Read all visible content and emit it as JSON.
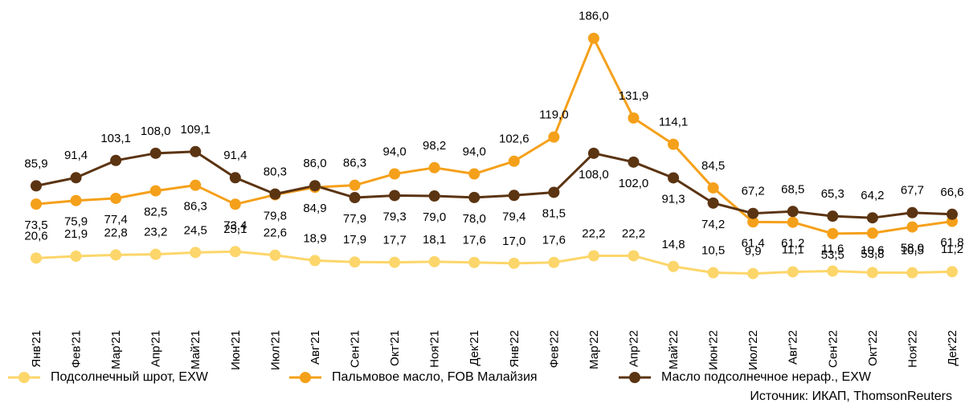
{
  "chart_data": {
    "type": "line",
    "categories": [
      "Янв'21",
      "Фев'21",
      "Мар'21",
      "Апр'21",
      "Май'21",
      "Июн'21",
      "Июл'21",
      "Авг'21",
      "Сен'21",
      "Окт'21",
      "Ноя'21",
      "Дек'21",
      "Янв'22",
      "Фев'22",
      "Мар'22",
      "Апр'22",
      "Май'22",
      "Июн'22",
      "Июл'22",
      "Авг'22",
      "Сен'22",
      "Окт'22",
      "Ноя'22",
      "Дек'22"
    ],
    "ylim": [
      0,
      200
    ],
    "y2lim": [
      -17,
      187
    ],
    "series": [
      {
        "name": "Подсолнечный шрот, EXW",
        "color": "#fcd66a",
        "axis": "y2",
        "values": [
          20.6,
          21.9,
          22.8,
          23.2,
          24.5,
          25.1,
          22.6,
          18.9,
          17.9,
          17.7,
          18.1,
          17.6,
          17.0,
          17.6,
          22.2,
          22.2,
          14.8,
          10.5,
          9.9,
          11.1,
          11.6,
          10.6,
          10.5,
          11.2
        ],
        "value_labels": [
          "20,6",
          "21,9",
          "22,8",
          "23,2",
          "24,5",
          "25,1",
          "22,6",
          "18,9",
          "17,9",
          "17,7",
          "18,1",
          "17,6",
          "17,0",
          "17,6",
          "22,2",
          "22,2",
          "14,8",
          "10,5",
          "9,9",
          "11,1",
          "11,6",
          "10,6",
          "10,5",
          "11,2"
        ]
      },
      {
        "name": "Пальмовое масло, FOB Малайзия",
        "color": "#f5a01a",
        "values": [
          73.5,
          75.9,
          77.4,
          82.5,
          86.3,
          73.4,
          79.8,
          84.9,
          86.3,
          94.0,
          98.2,
          94.0,
          102.6,
          119.0,
          186.0,
          131.9,
          114.1,
          84.5,
          61.4,
          61.2,
          53.5,
          53.8,
          58.0,
          61.8
        ],
        "value_labels": [
          "73,5",
          "75,9",
          "77,4",
          "82,5",
          "86,3",
          "73,4",
          "79,8",
          "84,9",
          "86,3",
          "94,0",
          "98,2",
          "94,0",
          "102,6",
          "119,0",
          "186,0",
          "131,9",
          "114,1",
          "84,5",
          "61,4",
          "61,2",
          "53,5",
          "53,8",
          "58,0",
          "61,8"
        ]
      },
      {
        "name": "Масло подсолнечное нераф., EXW",
        "color": "#5b3412",
        "values": [
          85.9,
          91.4,
          103.1,
          108.0,
          109.1,
          91.4,
          80.3,
          86.0,
          77.9,
          79.3,
          79.0,
          78.0,
          79.4,
          81.5,
          108.0,
          102.0,
          91.3,
          74.2,
          67.2,
          68.5,
          65.3,
          64.2,
          67.7,
          66.6
        ],
        "value_labels": [
          "85,9",
          "91,4",
          "103,1",
          "108,0",
          "109,1",
          "91,4",
          "80,3",
          "86,0",
          "77,9",
          "79,3",
          "79,0",
          "78,0",
          "79,4",
          "81,5",
          "108,0",
          "102,0",
          "91,3",
          "74,2",
          "67,2",
          "68,5",
          "65,3",
          "64,2",
          "67,7",
          "66,6"
        ]
      }
    ],
    "source": "Источник: ИКАП, ThomsonReuters"
  }
}
